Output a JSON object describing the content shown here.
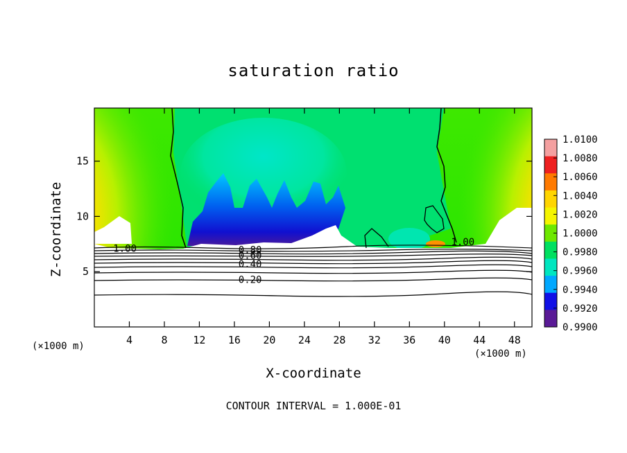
{
  "chart_data": {
    "type": "heatmap",
    "title": "saturation ratio",
    "xlabel": "X-coordinate",
    "ylabel": "Z-coordinate",
    "x_unit_left": "(×1000 m)",
    "x_unit_right": "(×1000 m)",
    "x_ticks": [
      4,
      8,
      12,
      16,
      20,
      24,
      28,
      32,
      36,
      40,
      44,
      48
    ],
    "y_ticks": [
      5,
      10,
      15
    ],
    "xlim": [
      0,
      50
    ],
    "ylim": [
      0,
      19.8
    ],
    "colorbar": {
      "ticks": [
        "1.0100",
        "1.0080",
        "1.0060",
        "1.0040",
        "1.0020",
        "1.0000",
        "0.9980",
        "0.9960",
        "0.9940",
        "0.9920",
        "0.9900"
      ],
      "min": 0.99,
      "max": 1.01,
      "colors": [
        "#f4a0a0",
        "#ee2020",
        "#ff7a00",
        "#ffd500",
        "#f5f500",
        "#6ee800",
        "#00e060",
        "#00e6c0",
        "#00a8ff",
        "#1010e6",
        "#5a1a96"
      ]
    },
    "contours": [
      {
        "label": "1.00",
        "x": 3.5,
        "y": 7.1
      },
      {
        "label": "1.00",
        "x": 42.1,
        "y": 7.7
      },
      {
        "label": "0.80",
        "x": 17.8,
        "y": 7.0
      },
      {
        "label": "0.60",
        "x": 17.8,
        "y": 6.5
      },
      {
        "label": "0.40",
        "x": 17.8,
        "y": 5.7
      },
      {
        "label": "0.20",
        "x": 17.8,
        "y": 4.3
      }
    ],
    "grid": false,
    "legend": "right colorbar"
  },
  "footer": "CONTOUR INTERVAL = 1.000E-01"
}
